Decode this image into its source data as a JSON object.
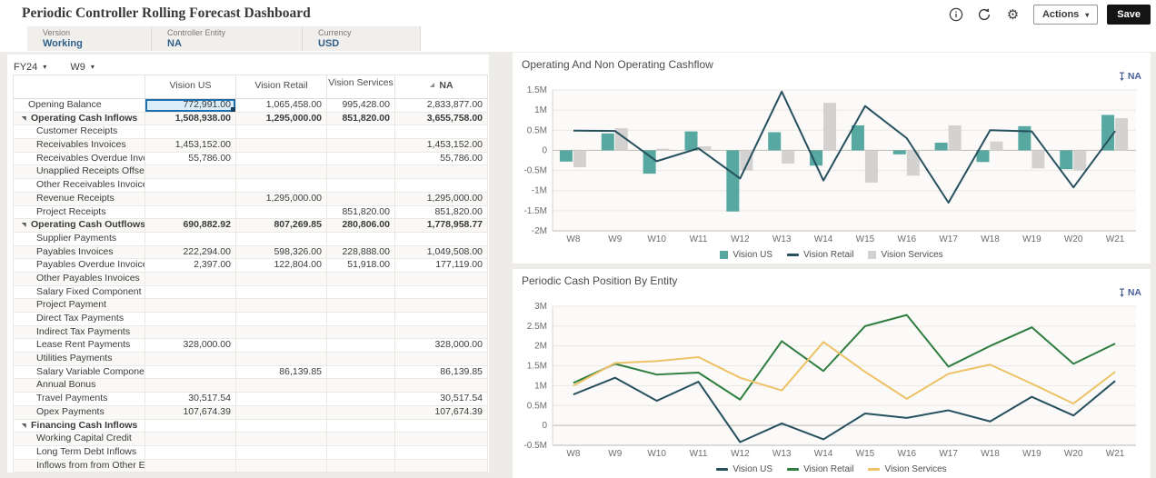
{
  "app": {
    "title": "Periodic Controller Rolling Forecast Dashboard",
    "toolbar": {
      "actions_label": "Actions",
      "save_label": "Save",
      "icons": [
        "info-icon",
        "refresh-icon",
        "gear-icon"
      ]
    },
    "pov_bar": [
      {
        "label": "Version",
        "value": "Working"
      },
      {
        "label": "Controller Entity",
        "value": "NA"
      },
      {
        "label": "Currency",
        "value": "USD"
      }
    ]
  },
  "grid": {
    "year_selector": "FY24",
    "week_selector": "W9",
    "columns": [
      "Vision US",
      "Vision Retail",
      "Vision Services",
      "NA"
    ],
    "selected": {
      "row": 0,
      "col": 0
    },
    "rows": [
      {
        "label": "Opening Balance",
        "indent": 0,
        "twisty": false,
        "bold": false,
        "values": [
          "772,991.00",
          "1,065,458.00",
          "995,428.00",
          "2,833,877.00"
        ]
      },
      {
        "label": "Operating Cash Inflows",
        "indent": 0,
        "twisty": true,
        "bold": true,
        "values": [
          "1,508,938.00",
          "1,295,000.00",
          "851,820.00",
          "3,655,758.00"
        ]
      },
      {
        "label": "Customer Receipts",
        "indent": 1,
        "twisty": false,
        "bold": false,
        "values": [
          "",
          "",
          "",
          ""
        ]
      },
      {
        "label": "Receivables Invoices",
        "indent": 1,
        "twisty": false,
        "bold": false,
        "values": [
          "1,453,152.00",
          "",
          "",
          "1,453,152.00"
        ]
      },
      {
        "label": "Receivables Overdue Invoices",
        "indent": 1,
        "twisty": false,
        "bold": false,
        "values": [
          "55,786.00",
          "",
          "",
          "55,786.00"
        ]
      },
      {
        "label": "Unapplied Receipts Offset",
        "indent": 1,
        "twisty": false,
        "bold": false,
        "values": [
          "",
          "",
          "",
          ""
        ]
      },
      {
        "label": "Other Receivables Invoices",
        "indent": 1,
        "twisty": false,
        "bold": false,
        "values": [
          "",
          "",
          "",
          ""
        ]
      },
      {
        "label": "Revenue Receipts",
        "indent": 1,
        "twisty": false,
        "bold": false,
        "values": [
          "",
          "1,295,000.00",
          "",
          "1,295,000.00"
        ]
      },
      {
        "label": "Project Receipts",
        "indent": 1,
        "twisty": false,
        "bold": false,
        "values": [
          "",
          "",
          "851,820.00",
          "851,820.00"
        ]
      },
      {
        "label": "Operating Cash Outflows",
        "indent": 0,
        "twisty": true,
        "bold": true,
        "values": [
          "690,882.92",
          "807,269.85",
          "280,806.00",
          "1,778,958.77"
        ]
      },
      {
        "label": "Supplier Payments",
        "indent": 1,
        "twisty": false,
        "bold": false,
        "values": [
          "",
          "",
          "",
          ""
        ]
      },
      {
        "label": "Payables Invoices",
        "indent": 1,
        "twisty": false,
        "bold": false,
        "values": [
          "222,294.00",
          "598,326.00",
          "228,888.00",
          "1,049,508.00"
        ]
      },
      {
        "label": "Payables Overdue Invoices",
        "indent": 1,
        "twisty": false,
        "bold": false,
        "values": [
          "2,397.00",
          "122,804.00",
          "51,918.00",
          "177,119.00"
        ]
      },
      {
        "label": "Other Payables Invoices",
        "indent": 1,
        "twisty": false,
        "bold": false,
        "values": [
          "",
          "",
          "",
          ""
        ]
      },
      {
        "label": "Salary Fixed  Component",
        "indent": 1,
        "twisty": false,
        "bold": false,
        "values": [
          "",
          "",
          "",
          ""
        ]
      },
      {
        "label": "Project Payment",
        "indent": 1,
        "twisty": false,
        "bold": false,
        "values": [
          "",
          "",
          "",
          ""
        ]
      },
      {
        "label": "Direct Tax Payments",
        "indent": 1,
        "twisty": false,
        "bold": false,
        "values": [
          "",
          "",
          "",
          ""
        ]
      },
      {
        "label": "Indirect Tax Payments",
        "indent": 1,
        "twisty": false,
        "bold": false,
        "values": [
          "",
          "",
          "",
          ""
        ]
      },
      {
        "label": "Lease Rent Payments",
        "indent": 1,
        "twisty": false,
        "bold": false,
        "values": [
          "328,000.00",
          "",
          "",
          "328,000.00"
        ]
      },
      {
        "label": "Utilities Payments",
        "indent": 1,
        "twisty": false,
        "bold": false,
        "values": [
          "",
          "",
          "",
          ""
        ]
      },
      {
        "label": "Salary Variable Component",
        "indent": 1,
        "twisty": false,
        "bold": false,
        "values": [
          "",
          "86,139.85",
          "",
          "86,139.85"
        ]
      },
      {
        "label": "Annual Bonus",
        "indent": 1,
        "twisty": false,
        "bold": false,
        "values": [
          "",
          "",
          "",
          ""
        ]
      },
      {
        "label": "Travel Payments",
        "indent": 1,
        "twisty": false,
        "bold": false,
        "values": [
          "30,517.54",
          "",
          "",
          "30,517.54"
        ]
      },
      {
        "label": "Opex Payments",
        "indent": 1,
        "twisty": false,
        "bold": false,
        "values": [
          "107,674.39",
          "",
          "",
          "107,674.39"
        ]
      },
      {
        "label": "Financing Cash Inflows",
        "indent": 0,
        "twisty": true,
        "bold": true,
        "values": [
          "",
          "",
          "",
          ""
        ]
      },
      {
        "label": "Working Capital Credit",
        "indent": 1,
        "twisty": false,
        "bold": false,
        "values": [
          "",
          "",
          "",
          ""
        ]
      },
      {
        "label": "Long Term Debt Inflows",
        "indent": 1,
        "twisty": false,
        "bold": false,
        "values": [
          "",
          "",
          "",
          ""
        ]
      },
      {
        "label": "Inflows from from Other Entities",
        "indent": 1,
        "twisty": false,
        "bold": false,
        "values": [
          "",
          "",
          "",
          ""
        ]
      }
    ]
  },
  "charts": [
    {
      "title": "Operating And Non Operating Cashflow",
      "pov": "NA"
    },
    {
      "title": "Periodic Cash Position By Entity",
      "pov": "NA"
    }
  ],
  "chart_data": [
    {
      "type": "bar",
      "title": "Operating And Non Operating Cashflow",
      "categories": [
        "W8",
        "W9",
        "W10",
        "W11",
        "W12",
        "W13",
        "W14",
        "W15",
        "W16",
        "W17",
        "W18",
        "W19",
        "W20",
        "W21"
      ],
      "unit": "M",
      "ylim": [
        -2,
        1.5
      ],
      "yticks": [
        1.5,
        1,
        0.5,
        0,
        -0.5,
        -1,
        -1.5,
        -2
      ],
      "legend_position": "bottom",
      "grid": true,
      "series": [
        {
          "name": "Vision US",
          "type": "bar",
          "color": "#56a8a1",
          "values": [
            -0.28,
            0.42,
            -0.58,
            0.47,
            -1.52,
            0.45,
            -0.38,
            0.62,
            -0.1,
            0.19,
            -0.29,
            0.6,
            -0.47,
            0.88
          ]
        },
        {
          "name": "Vision Retail",
          "type": "line",
          "color": "#26505e",
          "values": [
            0.49,
            0.48,
            -0.27,
            0.05,
            -0.7,
            1.46,
            -0.75,
            1.1,
            0.3,
            -1.3,
            0.5,
            0.47,
            -0.92,
            0.48
          ]
        },
        {
          "name": "Vision Services",
          "type": "bar",
          "color": "#d4d2d0",
          "values": [
            -0.42,
            0.55,
            0.04,
            0.1,
            -0.5,
            -0.33,
            1.18,
            -0.8,
            -0.63,
            0.62,
            0.22,
            -0.45,
            -0.5,
            0.8
          ]
        }
      ]
    },
    {
      "type": "line",
      "title": "Periodic Cash Position By Entity",
      "categories": [
        "W8",
        "W9",
        "W10",
        "W11",
        "W12",
        "W13",
        "W14",
        "W15",
        "W16",
        "W17",
        "W18",
        "W19",
        "W20",
        "W21"
      ],
      "unit": "M",
      "ylim": [
        -0.5,
        3
      ],
      "yticks": [
        3,
        2.5,
        2,
        1.5,
        1,
        0.5,
        0,
        -0.5
      ],
      "legend_position": "bottom",
      "grid": true,
      "series": [
        {
          "name": "Vision US",
          "type": "line",
          "color": "#26505e",
          "values": [
            0.78,
            1.2,
            0.62,
            1.1,
            -0.42,
            0.05,
            -0.35,
            0.3,
            0.19,
            0.38,
            0.1,
            0.72,
            0.25,
            1.12
          ]
        },
        {
          "name": "Vision Retail",
          "type": "line",
          "color": "#2f7d3f",
          "values": [
            1.07,
            1.55,
            1.28,
            1.33,
            0.65,
            2.12,
            1.37,
            2.5,
            2.78,
            1.48,
            2.0,
            2.47,
            1.55,
            2.06
          ]
        },
        {
          "name": "Vision Services",
          "type": "line",
          "color": "#eec266",
          "values": [
            1.0,
            1.57,
            1.62,
            1.72,
            1.2,
            0.88,
            2.1,
            1.35,
            0.67,
            1.3,
            1.53,
            1.05,
            0.55,
            1.35
          ]
        }
      ]
    }
  ],
  "colors": {
    "selected_cell_border": "#1e6fae",
    "selected_cell_fill": "#dbedf8",
    "pov_value": "#2d5f8a",
    "chart_pov": "#4a5f9b",
    "save_button": "#141414"
  }
}
